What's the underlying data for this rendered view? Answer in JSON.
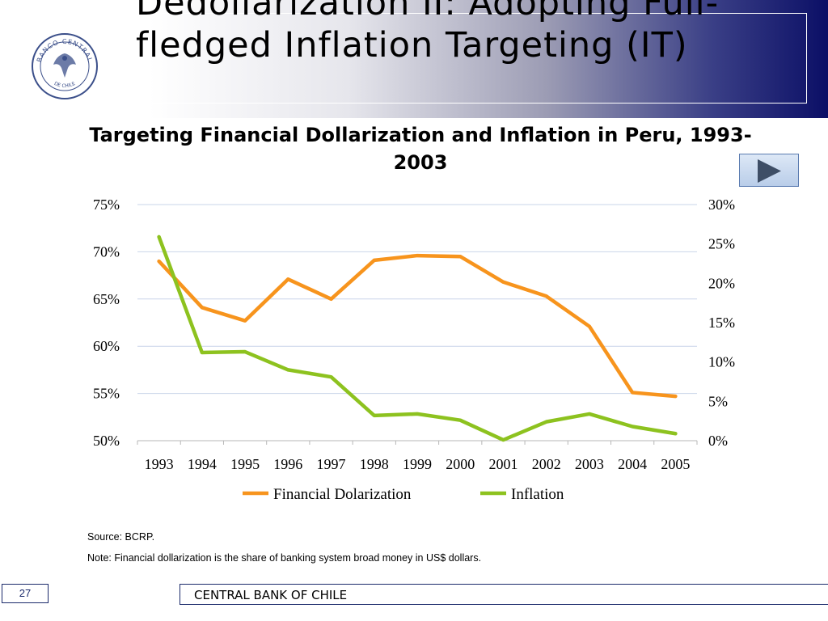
{
  "slide": {
    "title": "Dedollarization II: Adopting Full-fledged Inflation Targeting (IT)",
    "page_number": "27",
    "footer_org": "CENTRAL BANK OF CHILE"
  },
  "logo": {
    "text_top": "BANCO CENTRAL",
    "text_bottom": "DE CHILE"
  },
  "colors": {
    "financial_dollarization": "#f7941d",
    "inflation": "#8dc21f",
    "gridline": "#c9d4ea",
    "header_dark": "#0b0f66"
  },
  "notes": {
    "source": "Source: BCRP.",
    "note": "Note: Financial dollarization is the share of banking system broad money in US$ dollars."
  },
  "icons": {
    "next": "play-triangle-icon"
  },
  "chart_data": {
    "type": "line",
    "title": "Targeting Financial Dollarization and Inflation in Peru, 1993-2003",
    "categories": [
      "1993",
      "1994",
      "1995",
      "1996",
      "1997",
      "1998",
      "1999",
      "2000",
      "2001",
      "2002",
      "2003",
      "2004",
      "2005"
    ],
    "left_ticks": [
      "50%",
      "55%",
      "60%",
      "65%",
      "70%",
      "75%"
    ],
    "right_ticks": [
      "0%",
      "5%",
      "10%",
      "15%",
      "20%",
      "25%",
      "30%"
    ],
    "left_ylim": [
      50,
      75
    ],
    "right_ylim": [
      0,
      30
    ],
    "grid": true,
    "legend_position": "bottom",
    "series": [
      {
        "name": "Financial Dolarization",
        "axis": "left",
        "color": "#f7941d",
        "values": [
          69.0,
          64.1,
          62.7,
          67.1,
          65.0,
          69.1,
          69.6,
          69.5,
          66.8,
          65.3,
          62.1,
          55.1,
          54.7
        ]
      },
      {
        "name": "Inflation",
        "axis": "right",
        "color": "#8dc21f",
        "values": [
          25.9,
          11.2,
          11.3,
          9.0,
          8.1,
          3.2,
          3.4,
          2.6,
          0.1,
          2.4,
          3.4,
          1.8,
          0.9
        ]
      }
    ]
  }
}
